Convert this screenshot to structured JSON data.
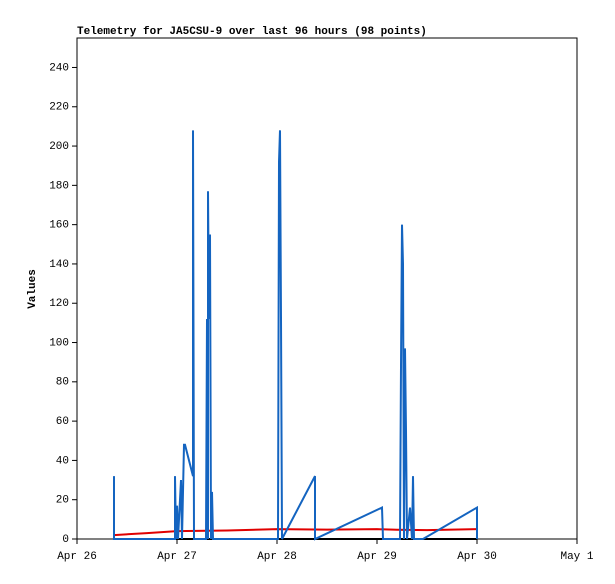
{
  "chart_data": {
    "type": "line",
    "title": "Telemetry for JA5CSU-9 over last 96 hours (98 points)",
    "y_label": "Values",
    "xlim": [
      0,
      5
    ],
    "xticks": [
      {
        "value": 0,
        "label": "Apr 26"
      },
      {
        "value": 1,
        "label": "Apr 27"
      },
      {
        "value": 2,
        "label": "Apr 28"
      },
      {
        "value": 3,
        "label": "Apr 29"
      },
      {
        "value": 4,
        "label": "Apr 30"
      },
      {
        "value": 5,
        "label": "May 1"
      }
    ],
    "ylim": [
      0,
      255
    ],
    "yticks": [
      0,
      20,
      40,
      60,
      80,
      100,
      120,
      140,
      160,
      180,
      200,
      220,
      240
    ],
    "series": [
      {
        "color": "#000000",
        "x": [
          0.37,
          4.0
        ],
        "values": [
          0,
          0
        ]
      },
      {
        "color": "#e00000",
        "x": [
          0.37,
          0.7,
          1.0,
          1.5,
          2.0,
          2.5,
          3.0,
          3.2,
          3.5,
          4.0
        ],
        "values": [
          2,
          3,
          4,
          4.3,
          5,
          4.8,
          5,
          4.7,
          4.5,
          5
        ]
      },
      {
        "color": "#1464c0",
        "x": [
          0.37,
          0.37,
          0.98,
          0.98,
          0.99,
          1.0,
          1.01,
          1.04,
          1.05,
          1.07,
          1.08,
          1.16,
          1.16,
          1.17,
          1.29,
          1.3,
          1.31,
          1.31,
          1.32,
          1.33,
          1.34,
          1.35,
          1.36,
          2.01,
          2.02,
          2.03,
          2.04,
          2.05,
          2.38,
          2.38,
          3.05,
          3.06,
          3.23,
          3.24,
          3.25,
          3.26,
          3.27,
          3.28,
          3.29,
          3.3,
          3.33,
          3.35,
          3.36,
          3.37,
          3.46,
          4.0,
          4.0
        ],
        "values": [
          32,
          0,
          0,
          32,
          0,
          17,
          0,
          30,
          0,
          48,
          48,
          32,
          208,
          0,
          0,
          112,
          0,
          177,
          112,
          155,
          0,
          24,
          0,
          0,
          192,
          208,
          112,
          0,
          32,
          0,
          16,
          0,
          0,
          88,
          160,
          140,
          0,
          97,
          55,
          0,
          16,
          0,
          32,
          0,
          0,
          16,
          0
        ]
      }
    ]
  }
}
